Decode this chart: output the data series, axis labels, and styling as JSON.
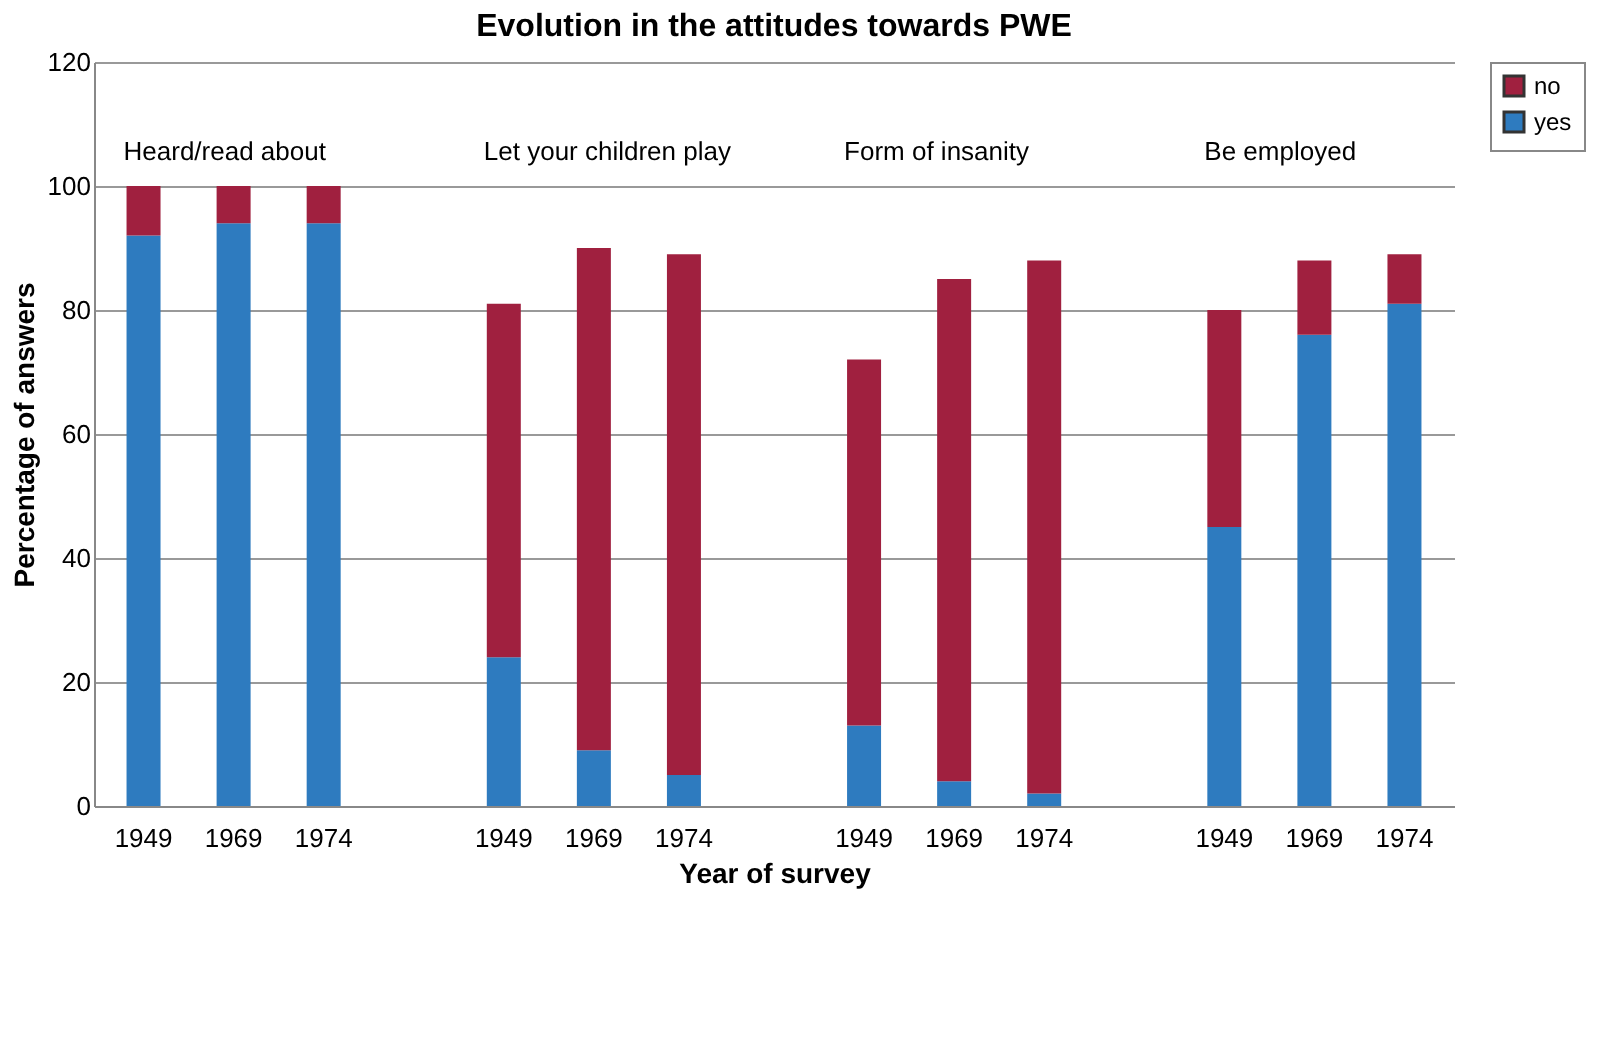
{
  "chart_data": {
    "type": "bar",
    "title": "Evolution in the attitudes towards PWE",
    "xlabel": "Year of survey",
    "ylabel": "Percentage of answers",
    "categories": [
      "1949",
      "1969",
      "1974",
      null,
      "1949",
      "1969",
      "1974",
      null,
      "1949",
      "1969",
      "1974",
      null,
      "1949",
      "1969",
      "1974"
    ],
    "series": [
      {
        "name": "yes",
        "color": "#2e7bbf",
        "values": [
          92,
          94,
          94,
          null,
          24,
          9,
          5,
          null,
          13,
          4,
          2,
          null,
          45,
          76,
          81
        ]
      },
      {
        "name": "no",
        "color": "#a0203f",
        "values": [
          8,
          6,
          6,
          null,
          57,
          81,
          84,
          null,
          59,
          81,
          86,
          null,
          35,
          12,
          8
        ]
      }
    ],
    "stacked": true,
    "ylim": [
      0,
      120
    ],
    "yticks": [
      0,
      20,
      40,
      60,
      80,
      100,
      120
    ],
    "grid": "y",
    "legend": "top right",
    "annotations": [
      "Heard/read about",
      "Let your children play",
      "Form of insanity",
      "Be employed"
    ]
  }
}
